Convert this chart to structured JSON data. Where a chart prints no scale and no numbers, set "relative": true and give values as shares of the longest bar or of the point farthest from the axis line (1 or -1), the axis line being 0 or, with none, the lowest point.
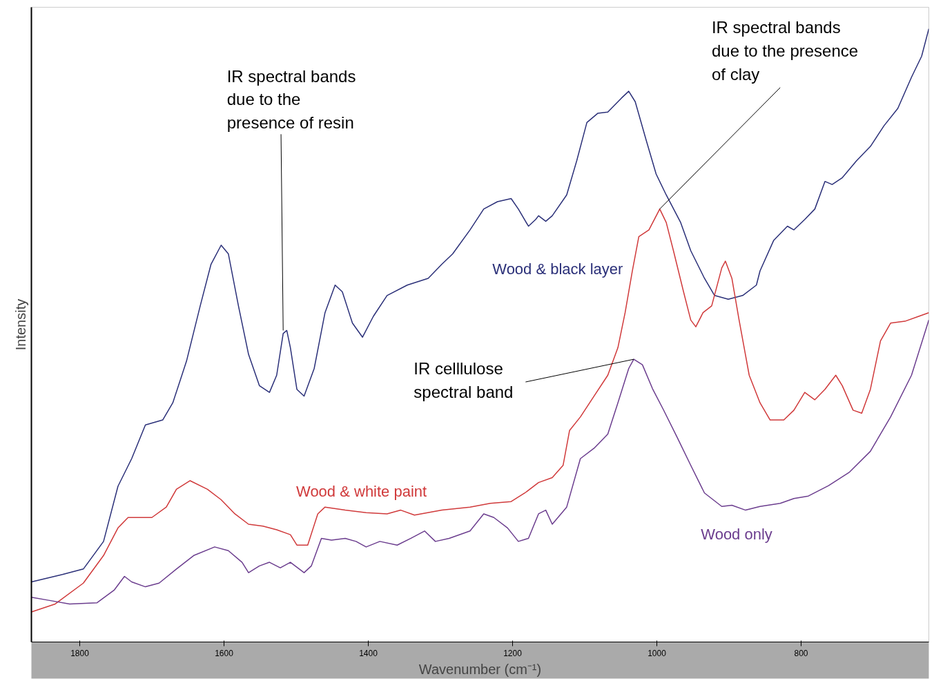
{
  "chart_data": {
    "type": "line",
    "relative": true,
    "xlabel": "Wavenumber (cm⁻¹)",
    "ylabel": "Intensity",
    "xlim": [
      1867,
      623
    ],
    "xticks": [
      1800,
      1600,
      1400,
      1200,
      1000,
      800
    ],
    "grid": false,
    "legend": false,
    "tick_labels": "x",
    "series": [
      {
        "name": "Wood & black layer",
        "color": "#2a2f78",
        "x": [
          1867,
          1824,
          1795,
          1767,
          1747,
          1728,
          1709,
          1685,
          1671,
          1652,
          1633,
          1618,
          1604,
          1594,
          1580,
          1566,
          1551,
          1537,
          1527,
          1518,
          1513,
          1508,
          1499,
          1489,
          1475,
          1460,
          1446,
          1436,
          1422,
          1408,
          1393,
          1374,
          1346,
          1317,
          1298,
          1283,
          1259,
          1240,
          1221,
          1202,
          1192,
          1178,
          1168,
          1164,
          1154,
          1145,
          1125,
          1111,
          1097,
          1082,
          1068,
          1049,
          1039,
          1030,
          1015,
          1001,
          987,
          967,
          953,
          934,
          920,
          901,
          881,
          862,
          857,
          838,
          819,
          810,
          795,
          781,
          767,
          757,
          743,
          723,
          704,
          685,
          666,
          647,
          633,
          623
        ],
        "values": [
          0.098,
          0.11,
          0.119,
          0.164,
          0.254,
          0.299,
          0.354,
          0.362,
          0.39,
          0.458,
          0.548,
          0.616,
          0.647,
          0.633,
          0.548,
          0.469,
          0.418,
          0.407,
          0.435,
          0.503,
          0.508,
          0.48,
          0.412,
          0.401,
          0.446,
          0.537,
          0.582,
          0.571,
          0.52,
          0.497,
          0.531,
          0.565,
          0.582,
          0.593,
          0.616,
          0.633,
          0.672,
          0.706,
          0.718,
          0.723,
          0.706,
          0.678,
          0.689,
          0.695,
          0.686,
          0.695,
          0.729,
          0.785,
          0.847,
          0.862,
          0.864,
          0.887,
          0.898,
          0.881,
          0.819,
          0.763,
          0.729,
          0.684,
          0.638,
          0.593,
          0.565,
          0.559,
          0.565,
          0.582,
          0.605,
          0.655,
          0.678,
          0.672,
          0.689,
          0.706,
          0.751,
          0.746,
          0.757,
          0.785,
          0.808,
          0.842,
          0.87,
          0.921,
          0.955,
          1.0
        ]
      },
      {
        "name": "Wood & white paint",
        "color": "#d0393a",
        "x": [
          1867,
          1834,
          1795,
          1767,
          1747,
          1733,
          1700,
          1680,
          1666,
          1647,
          1623,
          1604,
          1585,
          1566,
          1546,
          1527,
          1508,
          1499,
          1484,
          1470,
          1460,
          1432,
          1403,
          1374,
          1355,
          1336,
          1298,
          1259,
          1231,
          1202,
          1183,
          1164,
          1145,
          1130,
          1121,
          1106,
          1087,
          1068,
          1054,
          1044,
          1034,
          1025,
          1011,
          996,
          987,
          977,
          963,
          953,
          946,
          936,
          924,
          910,
          905,
          896,
          886,
          872,
          857,
          843,
          824,
          810,
          795,
          781,
          767,
          752,
          743,
          728,
          716,
          704,
          690,
          676,
          656,
          637,
          623
        ],
        "values": [
          0.049,
          0.062,
          0.096,
          0.141,
          0.186,
          0.203,
          0.203,
          0.22,
          0.249,
          0.263,
          0.249,
          0.232,
          0.209,
          0.192,
          0.189,
          0.183,
          0.175,
          0.158,
          0.158,
          0.209,
          0.22,
          0.215,
          0.211,
          0.209,
          0.215,
          0.207,
          0.215,
          0.22,
          0.226,
          0.229,
          0.243,
          0.26,
          0.268,
          0.288,
          0.345,
          0.367,
          0.401,
          0.435,
          0.48,
          0.537,
          0.605,
          0.661,
          0.672,
          0.706,
          0.684,
          0.638,
          0.571,
          0.525,
          0.514,
          0.537,
          0.548,
          0.61,
          0.621,
          0.593,
          0.525,
          0.435,
          0.39,
          0.362,
          0.362,
          0.378,
          0.407,
          0.395,
          0.412,
          0.435,
          0.418,
          0.378,
          0.373,
          0.412,
          0.491,
          0.52,
          0.523,
          0.531,
          0.537
        ]
      },
      {
        "name": "Wood only",
        "color": "#6b3d8e",
        "x": [
          1867,
          1843,
          1814,
          1776,
          1752,
          1738,
          1728,
          1709,
          1690,
          1666,
          1642,
          1613,
          1594,
          1575,
          1566,
          1551,
          1537,
          1522,
          1508,
          1489,
          1479,
          1465,
          1451,
          1432,
          1417,
          1403,
          1384,
          1360,
          1341,
          1322,
          1307,
          1288,
          1259,
          1240,
          1226,
          1207,
          1192,
          1178,
          1164,
          1154,
          1145,
          1125,
          1106,
          1087,
          1068,
          1054,
          1039,
          1032,
          1020,
          1006,
          991,
          972,
          953,
          934,
          910,
          896,
          877,
          857,
          829,
          810,
          790,
          762,
          733,
          704,
          676,
          647,
          623
        ],
        "values": [
          0.073,
          0.068,
          0.062,
          0.064,
          0.085,
          0.107,
          0.098,
          0.09,
          0.096,
          0.119,
          0.141,
          0.155,
          0.149,
          0.13,
          0.113,
          0.124,
          0.13,
          0.121,
          0.13,
          0.113,
          0.124,
          0.169,
          0.166,
          0.169,
          0.164,
          0.155,
          0.164,
          0.158,
          0.169,
          0.181,
          0.164,
          0.169,
          0.181,
          0.209,
          0.203,
          0.186,
          0.164,
          0.169,
          0.209,
          0.215,
          0.192,
          0.22,
          0.299,
          0.316,
          0.339,
          0.39,
          0.446,
          0.461,
          0.452,
          0.413,
          0.379,
          0.334,
          0.288,
          0.243,
          0.221,
          0.223,
          0.215,
          0.221,
          0.226,
          0.234,
          0.238,
          0.255,
          0.277,
          0.311,
          0.367,
          0.435,
          0.525
        ]
      }
    ],
    "annotations": [
      {
        "text": "IR spectral bands\n due to the\npresence of resin",
        "x": 1518,
        "y": 0.508
      },
      {
        "text": "IR spectral bands\ndue to the presence\nof clay",
        "x": 996,
        "y": 0.706
      },
      {
        "text": "IR celllulose\nspectral band",
        "x": 1032,
        "y": 0.461
      }
    ]
  }
}
